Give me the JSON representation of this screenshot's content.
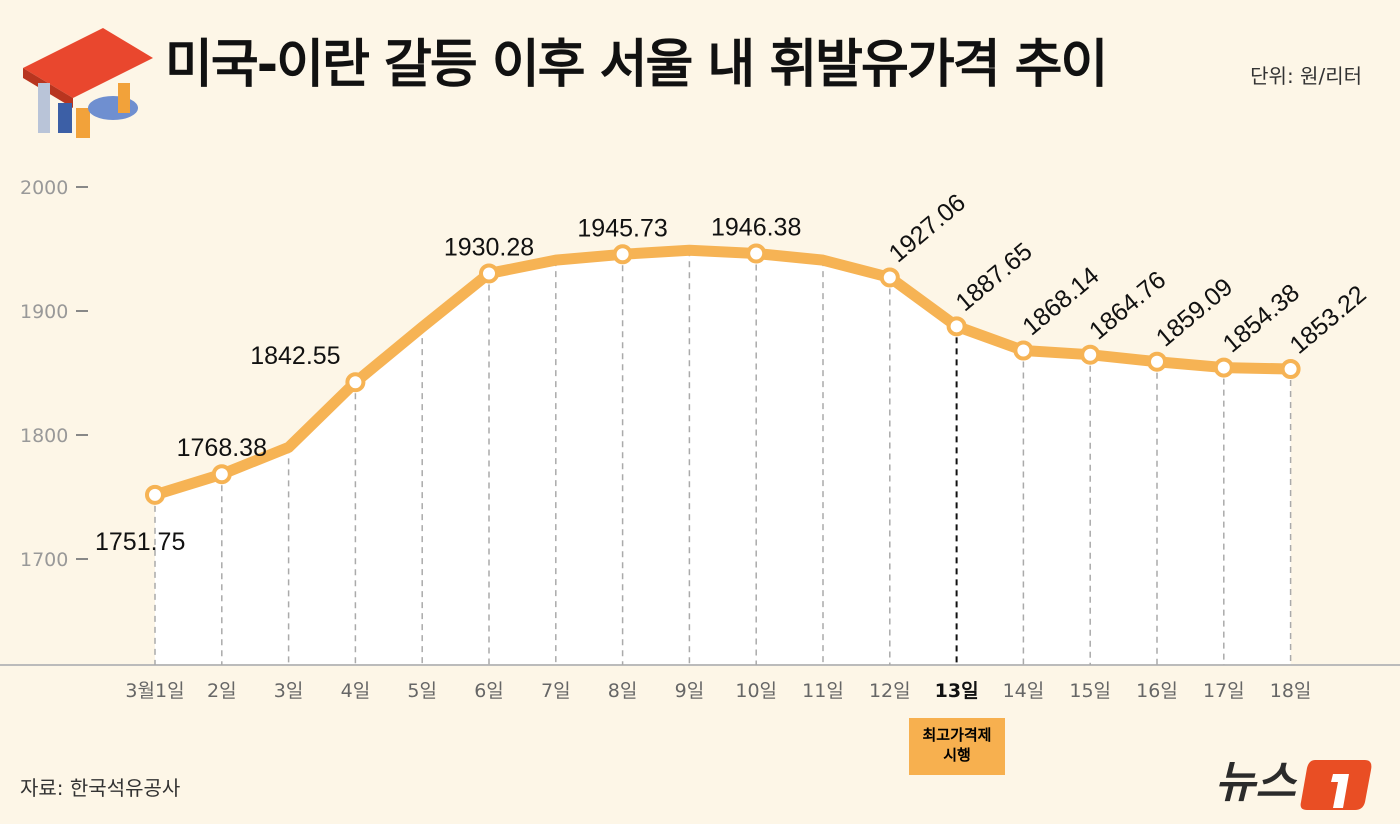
{
  "title": "미국-이란 갈등 이후 서울 내 휘발유가격 추이",
  "unit": "단위: 원/리터",
  "source": "자료: 한국석유공사",
  "annotation": {
    "line1": "최고가격제",
    "line2": "시행",
    "at": "13일"
  },
  "logo": "뉴스1",
  "colors": {
    "line": "#f6b354",
    "background": "#fdf6e7",
    "annotation": "#f7b04f",
    "logo_accent": "#e94e24"
  },
  "chart_data": {
    "type": "area",
    "categories": [
      "3월1일",
      "2일",
      "3일",
      "4일",
      "5일",
      "6일",
      "7일",
      "8일",
      "9일",
      "10일",
      "11일",
      "12일",
      "13일",
      "14일",
      "15일",
      "16일",
      "17일",
      "18일"
    ],
    "values": [
      1751.75,
      1768.38,
      1790,
      1842.55,
      1887,
      1930.28,
      1941,
      1945.73,
      1949,
      1946.38,
      1941,
      1927.06,
      1887.65,
      1868.14,
      1864.76,
      1859.09,
      1854.38,
      1853.22
    ],
    "labeled": [
      true,
      true,
      false,
      true,
      false,
      true,
      false,
      true,
      false,
      true,
      false,
      true,
      true,
      true,
      true,
      true,
      true,
      true
    ],
    "labels": [
      "1751.75",
      "1768.38",
      "",
      "1842.55",
      "",
      "1930.28",
      "",
      "1945.73",
      "",
      "1946.38",
      "",
      "1927.06",
      "1887.65",
      "1868.14",
      "1864.76",
      "1859.09",
      "1854.38",
      "1853.22"
    ],
    "yticks": [
      "2000",
      "1900",
      "1800",
      "1700"
    ],
    "ylim": [
      1620,
      2000
    ],
    "highlight_category": "13일",
    "xlabel": "",
    "ylabel": "",
    "grid": "vertical dashed"
  }
}
